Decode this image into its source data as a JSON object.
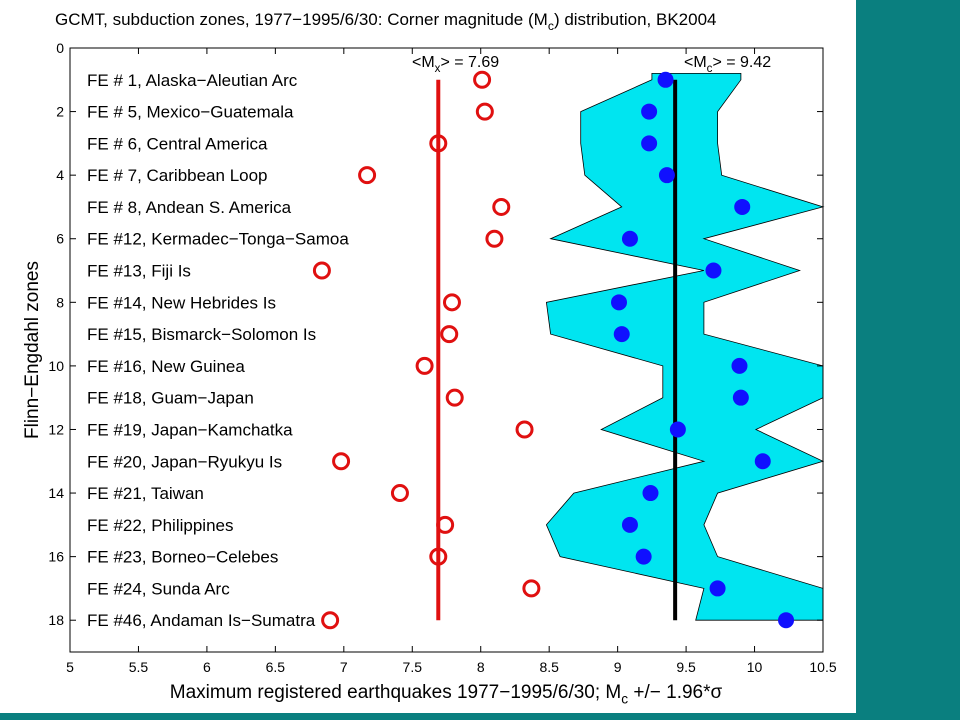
{
  "chart_data": {
    "type": "scatter",
    "title": "GCMT, subduction zones, 1977−1995/6/30: Corner magnitude (M",
    "title_sub": "c",
    "title_tail": ") distribution, BK2004",
    "xlabel": "Maximum registered earthquakes 1977−1995/6/30; M",
    "xlabel_sub": "c",
    "xlabel_tail": " +/− 1.96*σ",
    "ylabel": "Flinn−Engdahl zones",
    "xlim": [
      5,
      10.5
    ],
    "ylim": [
      0,
      19
    ],
    "y_reversed": true,
    "xticks": [
      "5",
      "5.5",
      "6",
      "6.5",
      "7",
      "7.5",
      "8",
      "8.5",
      "9",
      "9.5",
      "10",
      "10.5"
    ],
    "yticks": [
      "0",
      "2",
      "4",
      "6",
      "8",
      "10",
      "12",
      "14",
      "16",
      "18"
    ],
    "categories": [
      "FE # 1, Alaska−Aleutian Arc",
      "FE # 5, Mexico−Guatemala",
      "FE # 6, Central America",
      "FE # 7, Caribbean Loop",
      "FE # 8, Andean S. America",
      "FE #12, Kermadec−Tonga−Samoa",
      "FE #13, Fiji Is",
      "FE #14, New Hebrides Is",
      "FE #15, Bismarck−Solomon Is",
      "FE #16, New Guinea",
      "FE #18, Guam−Japan",
      "FE #19, Japan−Kamchatka",
      "FE #20, Japan−Ryukyu Is",
      "FE #21, Taiwan",
      "FE #22, Philippines",
      "FE #23, Borneo−Celebes",
      "FE #24, Sunda Arc",
      "FE #46, Andaman Is−Sumatra"
    ],
    "series": [
      {
        "marker": "open-circle",
        "color": "#e01010",
        "values": [
          8.01,
          8.03,
          7.69,
          7.17,
          8.15,
          8.1,
          6.84,
          7.79,
          7.77,
          7.59,
          7.81,
          8.32,
          6.98,
          7.41,
          7.74,
          7.69,
          8.37,
          6.9
        ]
      },
      {
        "marker": "filled-dot",
        "color": "#1010ff",
        "values": [
          9.35,
          9.23,
          9.23,
          9.36,
          9.91,
          9.09,
          9.7,
          9.01,
          9.03,
          9.89,
          9.9,
          9.44,
          10.06,
          9.24,
          9.09,
          9.19,
          9.73,
          10.23
        ]
      }
    ],
    "band": {
      "color": "#00e5f0",
      "lower": [
        9.25,
        8.73,
        8.73,
        8.76,
        9.03,
        8.51,
        9.63,
        8.48,
        8.51,
        9.33,
        9.33,
        8.88,
        9.63,
        8.68,
        8.48,
        8.58,
        9.63,
        9.57
      ],
      "upper": [
        9.9,
        9.73,
        9.73,
        9.76,
        10.5,
        9.63,
        10.33,
        9.63,
        9.63,
        10.5,
        10.5,
        10.01,
        10.5,
        9.73,
        9.63,
        9.73,
        10.5,
        10.5
      ]
    },
    "reference_lines": [
      {
        "label": "<M",
        "label_sub": "x",
        "label_tail": "> = 7.69",
        "value": 7.69,
        "color": "#e01010"
      },
      {
        "label": "<M",
        "label_sub": "c",
        "label_tail": "> = 9.42",
        "value": 9.42,
        "color": "#000000"
      }
    ],
    "grid": false
  }
}
